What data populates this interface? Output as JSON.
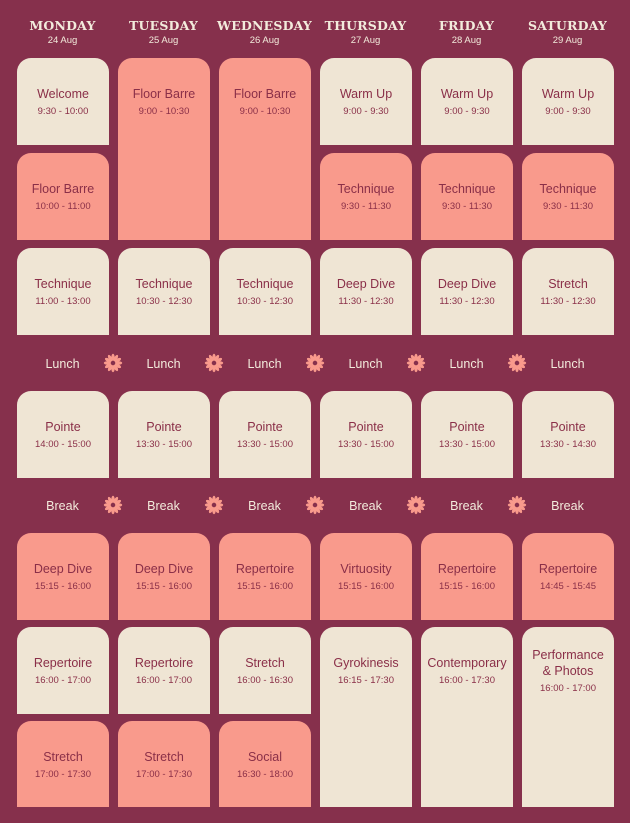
{
  "days": [
    {
      "name": "MONDAY",
      "date": "24 Aug"
    },
    {
      "name": "TUESDAY",
      "date": "25 Aug"
    },
    {
      "name": "WEDNESDAY",
      "date": "26 Aug"
    },
    {
      "name": "THURSDAY",
      "date": "27 Aug"
    },
    {
      "name": "FRIDAY",
      "date": "28 Aug"
    },
    {
      "name": "SATURDAY",
      "date": "29 Aug"
    }
  ],
  "sessions": [
    {
      "day": 0,
      "title": "Welcome",
      "time": "9:30 - 10:00",
      "color": "cream"
    },
    {
      "day": 0,
      "title": "Floor Barre",
      "time": "10:00 - 11:00",
      "color": "coral"
    },
    {
      "day": 0,
      "title": "Technique",
      "time": "11:00 - 13:00",
      "color": "cream"
    },
    {
      "day": 0,
      "title": "Pointe",
      "time": "14:00 - 15:00",
      "color": "cream"
    },
    {
      "day": 0,
      "title": "Deep Dive",
      "time": "15:15 - 16:00",
      "color": "coral"
    },
    {
      "day": 0,
      "title": "Repertoire",
      "time": "16:00 - 17:00",
      "color": "cream"
    },
    {
      "day": 0,
      "title": "Stretch",
      "time": "17:00 - 17:30",
      "color": "coral"
    },
    {
      "day": 1,
      "title": "Floor Barre",
      "time": "9:00 - 10:30",
      "color": "coral"
    },
    {
      "day": 1,
      "title": "Technique",
      "time": "10:30 - 12:30",
      "color": "cream"
    },
    {
      "day": 1,
      "title": "Pointe",
      "time": "13:30 - 15:00",
      "color": "cream"
    },
    {
      "day": 1,
      "title": "Deep Dive",
      "time": "15:15 - 16:00",
      "color": "coral"
    },
    {
      "day": 1,
      "title": "Repertoire",
      "time": "16:00 - 17:00",
      "color": "cream"
    },
    {
      "day": 1,
      "title": "Stretch",
      "time": "17:00 - 17:30",
      "color": "coral"
    },
    {
      "day": 2,
      "title": "Floor Barre",
      "time": "9:00 - 10:30",
      "color": "coral"
    },
    {
      "day": 2,
      "title": "Technique",
      "time": "10:30 - 12:30",
      "color": "cream"
    },
    {
      "day": 2,
      "title": "Pointe",
      "time": "13:30 - 15:00",
      "color": "cream"
    },
    {
      "day": 2,
      "title": "Repertoire",
      "time": "15:15 - 16:00",
      "color": "coral"
    },
    {
      "day": 2,
      "title": "Stretch",
      "time": "16:00 - 16:30",
      "color": "cream"
    },
    {
      "day": 2,
      "title": "Social",
      "time": "16:30 - 18:00",
      "color": "coral"
    },
    {
      "day": 3,
      "title": "Warm Up",
      "time": "9:00 - 9:30",
      "color": "cream"
    },
    {
      "day": 3,
      "title": "Technique",
      "time": "9:30 - 11:30",
      "color": "coral"
    },
    {
      "day": 3,
      "title": "Deep Dive",
      "time": "11:30 - 12:30",
      "color": "cream"
    },
    {
      "day": 3,
      "title": "Pointe",
      "time": "13:30 - 15:00",
      "color": "cream"
    },
    {
      "day": 3,
      "title": "Virtuosity",
      "time": "15:15 - 16:00",
      "color": "coral"
    },
    {
      "day": 3,
      "title": "Gyrokinesis",
      "time": "16:15 - 17:30",
      "color": "cream"
    },
    {
      "day": 4,
      "title": "Warm Up",
      "time": "9:00 - 9:30",
      "color": "cream"
    },
    {
      "day": 4,
      "title": "Technique",
      "time": "9:30 - 11:30",
      "color": "coral"
    },
    {
      "day": 4,
      "title": "Deep Dive",
      "time": "11:30 - 12:30",
      "color": "cream"
    },
    {
      "day": 4,
      "title": "Pointe",
      "time": "13:30 - 15:00",
      "color": "cream"
    },
    {
      "day": 4,
      "title": "Repertoire",
      "time": "15:15 - 16:00",
      "color": "coral"
    },
    {
      "day": 4,
      "title": "Contemporary",
      "time": "16:00 - 17:30",
      "color": "cream"
    },
    {
      "day": 5,
      "title": "Warm Up",
      "time": "9:00 - 9:30",
      "color": "cream"
    },
    {
      "day": 5,
      "title": "Technique",
      "time": "9:30 - 11:30",
      "color": "coral"
    },
    {
      "day": 5,
      "title": "Stretch",
      "time": "11:30 - 12:30",
      "color": "cream"
    },
    {
      "day": 5,
      "title": "Pointe",
      "time": "13:30 - 14:30",
      "color": "cream"
    },
    {
      "day": 5,
      "title": "Repertoire",
      "time": "14:45 - 15:45",
      "color": "coral"
    },
    {
      "day": 5,
      "title": "Performance & Photos",
      "time": "16:00 - 17:00",
      "color": "cream"
    }
  ],
  "lunch_label": "Lunch",
  "break_label": "Break",
  "colors": {
    "background": "#86304c",
    "cream": "#efe5d4",
    "coral": "#f99a8c",
    "text_dark": "#8a2f48",
    "text_light": "#f3ebdc"
  },
  "icons": {
    "separator": "flower-icon"
  }
}
